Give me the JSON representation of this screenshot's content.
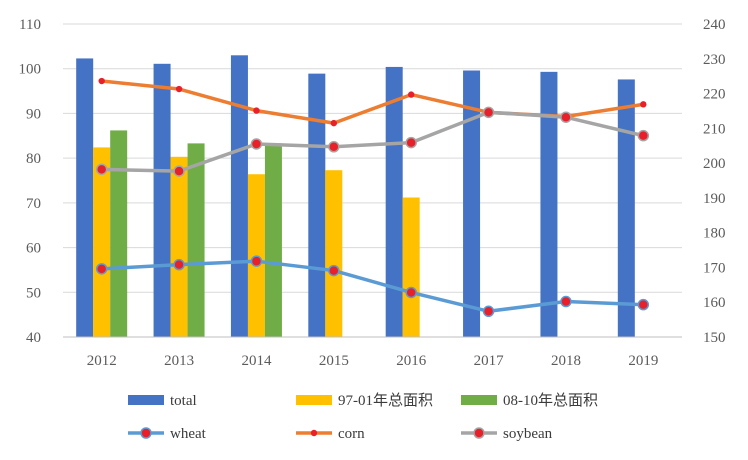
{
  "chart_data": {
    "type": "bar",
    "categories": [
      "2012",
      "2013",
      "2014",
      "2015",
      "2016",
      "2017",
      "2018",
      "2019"
    ],
    "primary_axis": {
      "ylim": [
        40,
        110
      ],
      "ticks": [
        40,
        50,
        60,
        70,
        80,
        90,
        100,
        110
      ]
    },
    "secondary_axis": {
      "ylim": [
        150,
        240
      ],
      "ticks": [
        150,
        160,
        170,
        180,
        190,
        200,
        210,
        220,
        230,
        240
      ]
    },
    "bar_series": [
      {
        "name": "total",
        "axis": "left",
        "color": "#4472C4",
        "values": [
          102.3,
          101.1,
          103.0,
          98.9,
          100.4,
          99.6,
          99.3,
          97.6
        ]
      },
      {
        "name": "97-01年总面积",
        "axis": "left",
        "color": "#FFC000",
        "values": [
          82.4,
          80.3,
          76.4,
          77.3,
          71.2,
          null,
          null,
          null
        ]
      },
      {
        "name": "08-10年总面积",
        "axis": "left",
        "color": "#70AD47",
        "values": [
          86.2,
          83.3,
          83.3,
          null,
          null,
          null,
          null,
          null
        ]
      }
    ],
    "line_series": [
      {
        "name": "wheat",
        "axis": "right",
        "color": "#5B9BD5",
        "marker": "circle",
        "values": [
          169.6,
          170.8,
          171.8,
          169.1,
          162.8,
          157.4,
          160.2,
          159.3
        ]
      },
      {
        "name": "corn",
        "axis": "right",
        "color": "#ED7D31",
        "marker": "small-dot",
        "values": [
          223.6,
          221.3,
          215.1,
          211.5,
          219.7,
          214.6,
          213.4,
          216.9
        ]
      },
      {
        "name": "soybean",
        "axis": "right",
        "color": "#A5A5A5",
        "marker": "circle",
        "values": [
          198.2,
          197.7,
          205.5,
          204.7,
          205.9,
          214.6,
          213.2,
          207.9
        ]
      }
    ],
    "marker_color": "#E8202A",
    "grid": true,
    "grid_color": "#D9D9D9",
    "legend_position": "bottom"
  }
}
